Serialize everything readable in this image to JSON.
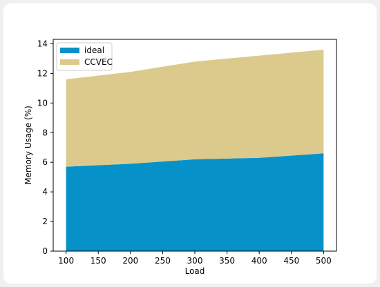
{
  "chart_data": {
    "type": "area",
    "stacked": true,
    "x": [
      100,
      200,
      300,
      400,
      500
    ],
    "series": [
      {
        "name": "ideal",
        "values": [
          5.7,
          5.9,
          6.2,
          6.3,
          6.6
        ],
        "color": "#0692c8"
      },
      {
        "name": "CCVEC",
        "values": [
          5.9,
          6.2,
          6.6,
          6.9,
          7.0
        ],
        "color": "#dcc98c"
      }
    ],
    "xlabel": "Load",
    "ylabel": "Memory Usage (%)",
    "xlim": [
      80,
      520
    ],
    "ylim": [
      0,
      14.3
    ],
    "xticks": [
      100,
      150,
      200,
      250,
      300,
      350,
      400,
      450,
      500
    ],
    "yticks": [
      0,
      2,
      4,
      6,
      8,
      10,
      12,
      14
    ],
    "grid": false,
    "legend_position": "top-left"
  }
}
